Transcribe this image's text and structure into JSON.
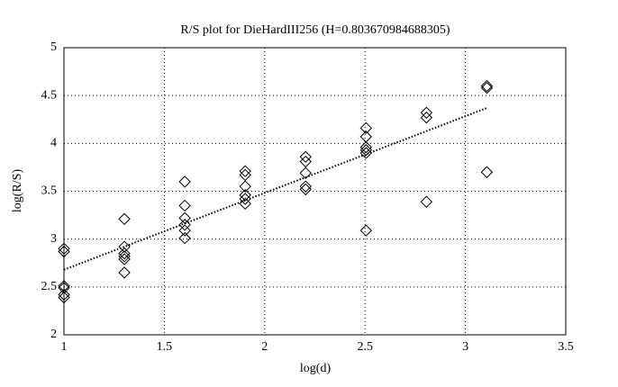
{
  "chart_data": {
    "type": "scatter",
    "title": "R/S plot for DieHardIII256 (H=0.803670984688305)",
    "x_label": "log(d)",
    "y_label": "log(R/S)",
    "x": [
      1,
      1,
      1,
      1,
      1,
      1,
      1.301,
      1.301,
      1.301,
      1.301,
      1.301,
      1.301,
      1.602,
      1.602,
      1.602,
      1.602,
      1.602,
      1.602,
      1.903,
      1.903,
      1.903,
      1.903,
      1.903,
      1.903,
      2.204,
      2.204,
      2.204,
      2.204,
      2.204,
      2.505,
      2.505,
      2.505,
      2.505,
      2.505,
      2.505,
      2.806,
      2.806,
      2.806,
      3.107,
      3.107,
      3.107
    ],
    "values": [
      2.9,
      2.87,
      2.51,
      2.49,
      2.42,
      2.39,
      3.21,
      2.92,
      2.85,
      2.82,
      2.79,
      2.65,
      3.6,
      3.35,
      3.22,
      3.15,
      3.09,
      3.01,
      3.71,
      3.67,
      3.55,
      3.46,
      3.42,
      3.37,
      3.86,
      3.81,
      3.69,
      3.55,
      3.52,
      4.16,
      4.07,
      3.96,
      3.93,
      3.9,
      3.09,
      4.32,
      4.27,
      3.39,
      4.6,
      4.58,
      3.7
    ],
    "color": "#000000",
    "fit": {
      "x": [
        1,
        3.107
      ],
      "values": [
        2.68,
        4.37
      ]
    },
    "xlim": [
      1,
      3.5
    ],
    "xticks": [
      1,
      1.5,
      2,
      2.5,
      3,
      3.5
    ],
    "ylim": [
      2,
      5
    ],
    "yticks": [
      2,
      2.5,
      3,
      3.5,
      4,
      4.5,
      5
    ],
    "grid": true
  }
}
